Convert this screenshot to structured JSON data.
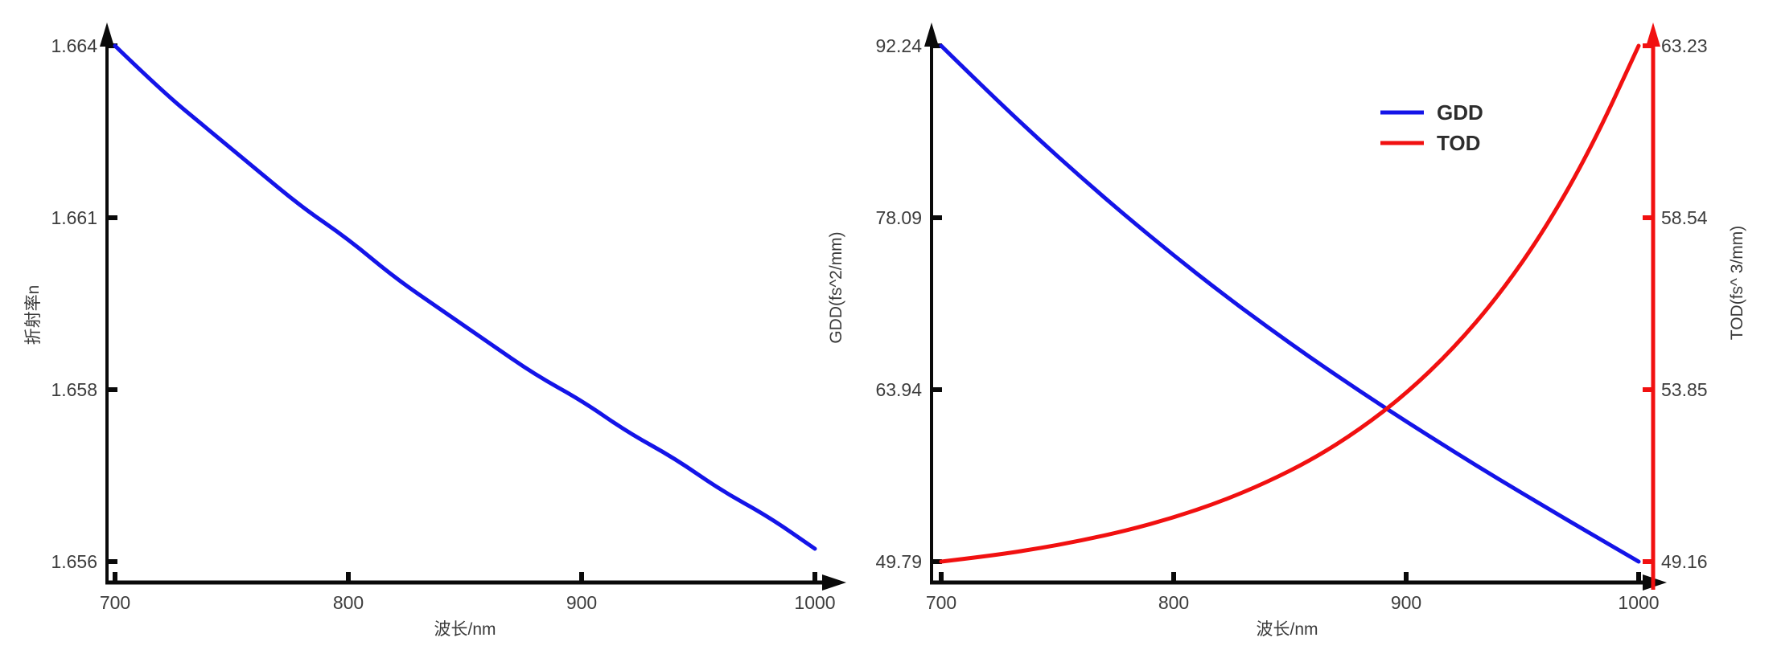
{
  "colors": {
    "background": "#ffffff",
    "axis": "#0a0a0a",
    "tick_text": "#3d3d3d",
    "curve_blue": "#1414e8",
    "curve_red": "#f11010"
  },
  "chart_data": [
    {
      "type": "line",
      "title": "",
      "xlabel": "波长/nm",
      "ylabel": "折射率n",
      "x_tick_labels": [
        "700",
        "800",
        "900",
        "1000"
      ],
      "x_tick_values": [
        700,
        800,
        900,
        1000
      ],
      "y_axis": {
        "label": "折射率n",
        "max": 1.664,
        "min": 1.656,
        "tick_labels": [
          "1.664",
          "1.661",
          "1.658",
          "1.656"
        ]
      },
      "grid": false,
      "legend": null,
      "x": [
        700,
        720,
        740,
        760,
        780,
        800,
        820,
        840,
        860,
        880,
        900,
        920,
        940,
        960,
        980,
        1000
      ],
      "series": [
        {
          "name": "n",
          "axis": "left",
          "color": "#1414e8",
          "values": [
            1.664,
            1.6633,
            1.6627,
            1.6621,
            1.6615,
            1.661,
            1.6604,
            1.6599,
            1.6594,
            1.6589,
            1.6585,
            1.658,
            1.6576,
            1.6571,
            1.6567,
            1.6562
          ]
        }
      ]
    },
    {
      "type": "line",
      "title": "",
      "xlabel": "波长/nm",
      "x_tick_labels": [
        "700",
        "800",
        "900",
        "1000"
      ],
      "x_tick_values": [
        700,
        800,
        900,
        1000
      ],
      "y_axis_left": {
        "label": "GDD(fs^2/mm)",
        "max": 92.24,
        "min": 49.79,
        "tick_labels": [
          "92.24",
          "78.09",
          "63.94",
          "49.79"
        ]
      },
      "y_axis_right": {
        "label": "TOD(fs^ 3/mm)",
        "max": 63.23,
        "min": 49.16,
        "tick_labels": [
          "63.23",
          "58.54",
          "53.85",
          "49.16"
        ]
      },
      "grid": false,
      "legend": {
        "position": "top-right",
        "entries": [
          "GDD",
          "TOD"
        ]
      },
      "x": [
        700,
        720,
        740,
        760,
        780,
        800,
        820,
        840,
        860,
        880,
        900,
        920,
        940,
        960,
        980,
        1000
      ],
      "series": [
        {
          "name": "GDD",
          "axis": "left",
          "color": "#1414e8",
          "values": [
            92.24,
            88.49,
            84.89,
            81.44,
            78.14,
            74.99,
            71.99,
            69.14,
            66.42,
            63.82,
            61.32,
            58.9,
            56.55,
            54.27,
            52.02,
            49.79
          ]
        },
        {
          "name": "TOD",
          "axis": "right",
          "color": "#f11010",
          "values": [
            49.16,
            49.31,
            49.5,
            49.73,
            50.01,
            50.36,
            50.79,
            51.32,
            51.96,
            52.76,
            53.74,
            54.95,
            56.43,
            58.25,
            60.49,
            63.23
          ]
        }
      ]
    }
  ]
}
